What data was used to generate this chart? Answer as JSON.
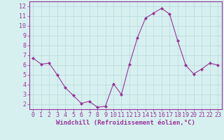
{
  "x": [
    0,
    1,
    2,
    3,
    4,
    5,
    6,
    7,
    8,
    9,
    10,
    11,
    12,
    13,
    14,
    15,
    16,
    17,
    18,
    19,
    20,
    21,
    22,
    23
  ],
  "y": [
    6.7,
    6.1,
    6.2,
    5.0,
    3.7,
    2.9,
    2.1,
    2.3,
    1.7,
    1.8,
    4.1,
    3.0,
    6.1,
    8.8,
    10.8,
    11.3,
    11.8,
    11.2,
    8.5,
    6.0,
    5.1,
    5.6,
    6.2,
    6.0
  ],
  "line_color": "#993399",
  "marker": "D",
  "marker_size": 2,
  "background_color": "#d6f0f0",
  "grid_color": "#b8d8d8",
  "xlabel": "Windchill (Refroidissement éolien,°C)",
  "xlabel_color": "#993399",
  "tick_color": "#993399",
  "spine_color": "#993399",
  "ylim": [
    1.5,
    12.5
  ],
  "xlim": [
    -0.5,
    23.5
  ],
  "yticks": [
    2,
    3,
    4,
    5,
    6,
    7,
    8,
    9,
    10,
    11,
    12
  ],
  "xticks": [
    0,
    1,
    2,
    3,
    4,
    5,
    6,
    7,
    8,
    9,
    10,
    11,
    12,
    13,
    14,
    15,
    16,
    17,
    18,
    19,
    20,
    21,
    22,
    23
  ],
  "tick_fontsize": 6.0,
  "xlabel_fontsize": 6.5
}
